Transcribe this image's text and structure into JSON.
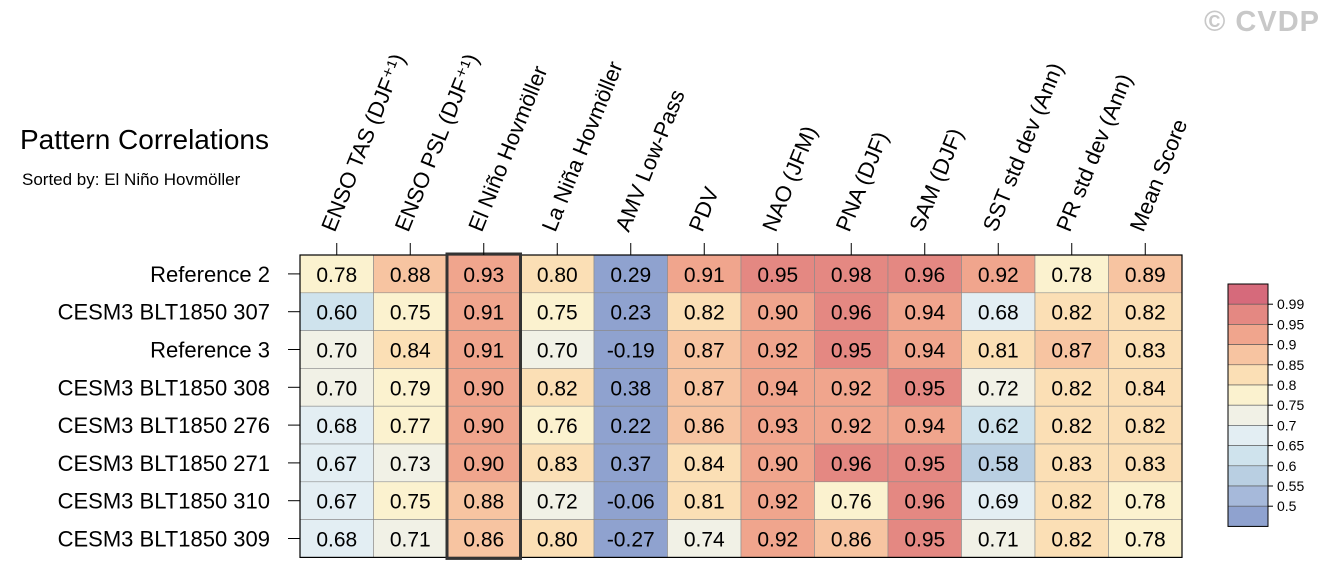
{
  "watermark": "© CVDP",
  "chart_data": {
    "type": "heatmap",
    "title": "Pattern Correlations",
    "subtitle": "Sorted by: El Niño Hovmöller",
    "columns": [
      "ENSO TAS (DJF⁺¹)",
      "ENSO PSL (DJF⁺¹)",
      "El Niño Hovmöller",
      "La Niña Hovmöller",
      "AMV Low-Pass",
      "PDV",
      "NAO (JFM)",
      "PNA (DJF)",
      "SAM (DJF)",
      "SST std dev (Ann)",
      "PR std dev (Ann)",
      "Mean Score"
    ],
    "rows": [
      "Reference 2",
      "CESM3 BLT1850 307",
      "Reference 3",
      "CESM3 BLT1850 308",
      "CESM3 BLT1850 276",
      "CESM3 BLT1850 271",
      "CESM3 BLT1850 310",
      "CESM3 BLT1850 309"
    ],
    "values": [
      [
        "0.78",
        "0.88",
        "0.93",
        "0.80",
        "0.29",
        "0.91",
        "0.95",
        "0.98",
        "0.96",
        "0.92",
        "0.78",
        "0.89"
      ],
      [
        "0.60",
        "0.75",
        "0.91",
        "0.75",
        "0.23",
        "0.82",
        "0.90",
        "0.96",
        "0.94",
        "0.68",
        "0.82",
        "0.82"
      ],
      [
        "0.70",
        "0.84",
        "0.91",
        "0.70",
        "-0.19",
        "0.87",
        "0.92",
        "0.95",
        "0.94",
        "0.81",
        "0.87",
        "0.83"
      ],
      [
        "0.70",
        "0.79",
        "0.90",
        "0.82",
        "0.38",
        "0.87",
        "0.94",
        "0.92",
        "0.95",
        "0.72",
        "0.82",
        "0.84"
      ],
      [
        "0.68",
        "0.77",
        "0.90",
        "0.76",
        "0.22",
        "0.86",
        "0.93",
        "0.92",
        "0.94",
        "0.62",
        "0.82",
        "0.82"
      ],
      [
        "0.67",
        "0.73",
        "0.90",
        "0.83",
        "0.37",
        "0.84",
        "0.90",
        "0.96",
        "0.95",
        "0.58",
        "0.83",
        "0.83"
      ],
      [
        "0.67",
        "0.75",
        "0.88",
        "0.72",
        "-0.06",
        "0.81",
        "0.92",
        "0.76",
        "0.96",
        "0.69",
        "0.82",
        "0.78"
      ],
      [
        "0.68",
        "0.71",
        "0.86",
        "0.80",
        "-0.27",
        "0.74",
        "0.92",
        "0.86",
        "0.95",
        "0.71",
        "0.82",
        "0.78"
      ]
    ],
    "highlighted_column": "El Niño Hovmöller",
    "colorbar": {
      "labels": [
        "0.99",
        "0.95",
        "0.9",
        "0.85",
        "0.8",
        "0.75",
        "0.7",
        "0.65",
        "0.6",
        "0.55",
        "0.5"
      ],
      "colors": [
        "#d66a7b",
        "#e48882",
        "#f0a58d",
        "#f7c4a1",
        "#fbdfb5",
        "#fbf2cf",
        "#f1f1e6",
        "#e3eef3",
        "#cfe3ed",
        "#b9cfe2",
        "#a6b9da",
        "#8fa2cf"
      ]
    }
  }
}
